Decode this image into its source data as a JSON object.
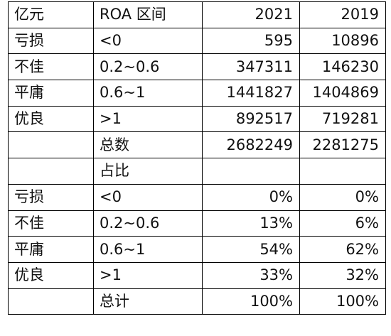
{
  "header": [
    "亿元",
    "ROA 区间",
    "2021",
    "2019"
  ],
  "amount_rows": [
    {
      "cat": "亏损",
      "range": "<0",
      "v2021": "595",
      "v2019": "10896"
    },
    {
      "cat": "不佳",
      "range": "0.2~0.6",
      "v2021": "347311",
      "v2019": "146230"
    },
    {
      "cat": "平庸",
      "range": "0.6~1",
      "v2021": "1441827",
      "v2019": "1404869"
    },
    {
      "cat": "优良",
      "range": ">1",
      "v2021": "892517",
      "v2019": "719281"
    },
    {
      "cat": "",
      "range": "总数",
      "v2021": "2682249",
      "v2019": "2281275"
    }
  ],
  "share_header": "占比",
  "share_rows": [
    {
      "cat": "亏损",
      "range": "<0",
      "v2021": "0%",
      "v2019": "0%"
    },
    {
      "cat": "不佳",
      "range": "0.2~0.6",
      "v2021": "13%",
      "v2019": "6%"
    },
    {
      "cat": "平庸",
      "range": "0.6~1",
      "v2021": "54%",
      "v2019": "62%"
    },
    {
      "cat": "优良",
      "range": ">1",
      "v2021": "33%",
      "v2019": "32%"
    },
    {
      "cat": "",
      "range": "总计",
      "v2021": "100%",
      "v2019": "100%"
    }
  ]
}
